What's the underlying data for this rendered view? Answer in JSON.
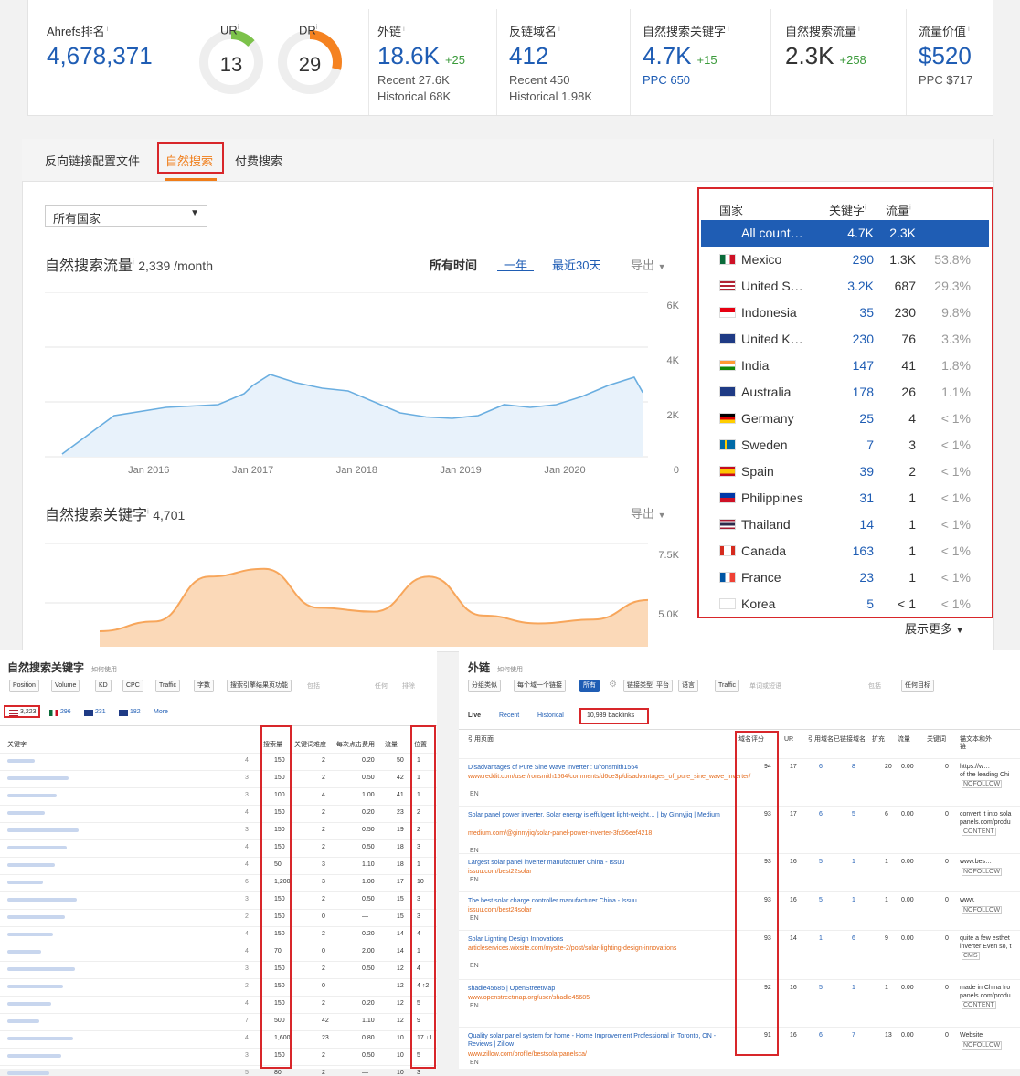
{
  "metrics": {
    "ahrefs_rank": {
      "label": "Ahrefs排名",
      "value": "4,678,371"
    },
    "ur": {
      "label": "UR",
      "value": "13",
      "score": 13,
      "color": "#7cc24a"
    },
    "dr": {
      "label": "DR",
      "value": "29",
      "score": 29,
      "color": "#f58220"
    },
    "backlinks": {
      "label": "外链",
      "value": "18.6K",
      "delta": "+25",
      "recent": "Recent 27.6K",
      "historical": "Historical 68K"
    },
    "ref_domains": {
      "label": "反链域名",
      "value": "412",
      "recent": "Recent 450",
      "historical": "Historical 1.98K"
    },
    "organic_keywords": {
      "label": "自然搜索关键字",
      "value": "4.7K",
      "delta": "+15",
      "ppc": "PPC 650"
    },
    "organic_traffic": {
      "label": "自然搜索流量",
      "value": "2.3K",
      "delta": "+258"
    },
    "traffic_value": {
      "label": "流量价值",
      "value": "$520",
      "ppc": "PPC $717"
    },
    "info_mark": "i"
  },
  "tabs": [
    "反向链接配置文件",
    "自然搜索",
    "付费搜索"
  ],
  "country_select": "所有国家",
  "traffic_section": {
    "title": "自然搜索流量",
    "value": "2,339 /month",
    "filters": {
      "all": "所有时间",
      "year": "一年",
      "days30": "最近30天",
      "export": "导出"
    },
    "y_ticks": [
      "6K",
      "4K",
      "2K",
      "0"
    ],
    "x_ticks": [
      "Jan 2016",
      "Jan 2017",
      "Jan 2018",
      "Jan 2019",
      "Jan 2020"
    ]
  },
  "keywords_section": {
    "title": "自然搜索关键字",
    "value": "4,701",
    "export": "导出",
    "y_ticks": [
      "7.5K",
      "5.0K"
    ]
  },
  "chart_data": [
    {
      "type": "line",
      "title": "自然搜索流量",
      "x": [
        "2015-03",
        "2015-09",
        "2016-03",
        "2016-09",
        "2016-12",
        "2017-01",
        "2017-03",
        "2017-06",
        "2017-09",
        "2017-12",
        "2018-03",
        "2018-06",
        "2018-09",
        "2018-12",
        "2019-03",
        "2019-06",
        "2019-09",
        "2019-12",
        "2020-03",
        "2020-06",
        "2020-09",
        "2020-10"
      ],
      "series": [
        {
          "values": [
            100,
            1500,
            1800,
            1900,
            2300,
            2600,
            3000,
            2700,
            2500,
            2400,
            2000,
            1600,
            1450,
            1400,
            1500,
            1900,
            1800,
            1900,
            2200,
            2600,
            2900,
            2339
          ]
        }
      ],
      "ylim": [
        0,
        6000
      ],
      "grid": true,
      "color": "#6aaee0"
    },
    {
      "type": "area",
      "title": "自然搜索关键字",
      "x": [
        "2015",
        "2016",
        "2016-06",
        "2017",
        "2017-06",
        "2018",
        "2018-06",
        "2019",
        "2019-06",
        "2020",
        "2020-06"
      ],
      "series": [
        {
          "values": [
            3000,
            3500,
            5800,
            6200,
            4200,
            4000,
            5800,
            3800,
            3400,
            3600,
            4600
          ]
        }
      ],
      "ylim": [
        0,
        7500
      ],
      "color": "#f7a65b"
    }
  ],
  "country_table": {
    "headers": [
      "国家",
      "关键字",
      "流量"
    ],
    "rows": [
      {
        "name": "All count…",
        "kw": "4.7K",
        "traffic": "2.3K",
        "pct": ""
      },
      {
        "name": "Mexico",
        "kw": "290",
        "traffic": "1.3K",
        "pct": "53.8%"
      },
      {
        "name": "United S…",
        "kw": "3.2K",
        "traffic": "687",
        "pct": "29.3%"
      },
      {
        "name": "Indonesia",
        "kw": "35",
        "traffic": "230",
        "pct": "9.8%"
      },
      {
        "name": "United K…",
        "kw": "230",
        "traffic": "76",
        "pct": "3.3%"
      },
      {
        "name": "India",
        "kw": "147",
        "traffic": "41",
        "pct": "1.8%"
      },
      {
        "name": "Australia",
        "kw": "178",
        "traffic": "26",
        "pct": "1.1%"
      },
      {
        "name": "Germany",
        "kw": "25",
        "traffic": "4",
        "pct": "< 1%"
      },
      {
        "name": "Sweden",
        "kw": "7",
        "traffic": "3",
        "pct": "< 1%"
      },
      {
        "name": "Spain",
        "kw": "39",
        "traffic": "2",
        "pct": "< 1%"
      },
      {
        "name": "Philippines",
        "kw": "31",
        "traffic": "1",
        "pct": "< 1%"
      },
      {
        "name": "Thailand",
        "kw": "14",
        "traffic": "1",
        "pct": "< 1%"
      },
      {
        "name": "Canada",
        "kw": "163",
        "traffic": "1",
        "pct": "< 1%"
      },
      {
        "name": "France",
        "kw": "23",
        "traffic": "1",
        "pct": "< 1%"
      },
      {
        "name": "Korea",
        "kw": "5",
        "traffic": "< 1",
        "pct": "< 1%"
      }
    ],
    "more": "展示更多"
  },
  "bottom_left": {
    "title": "自然搜索关键字",
    "howto": "如何使用",
    "filters": [
      "Position",
      "Volume",
      "KD",
      "CPC",
      "Traffic",
      "字数",
      "搜索引擎结果页功能",
      "包括",
      "任何",
      "排除"
    ],
    "countries": [
      {
        "n": "3,223"
      },
      {
        "n": "296"
      },
      {
        "n": "231"
      },
      {
        "n": "182"
      }
    ],
    "more": "More",
    "columns": [
      "关键字",
      "搜索量",
      "关键词难度",
      "每次点击费用",
      "流量",
      "位置"
    ],
    "rows": [
      [
        "4",
        "150",
        "2",
        "0.20",
        "50",
        "1"
      ],
      [
        "3",
        "150",
        "2",
        "0.50",
        "42",
        "1"
      ],
      [
        "3",
        "100",
        "4",
        "1.00",
        "41",
        "1"
      ],
      [
        "4",
        "150",
        "2",
        "0.20",
        "23",
        "2"
      ],
      [
        "3",
        "150",
        "2",
        "0.50",
        "19",
        "2"
      ],
      [
        "4",
        "150",
        "2",
        "0.50",
        "18",
        "3"
      ],
      [
        "4",
        "50",
        "3",
        "1.10",
        "18",
        "1"
      ],
      [
        "6",
        "1,200",
        "3",
        "1.00",
        "17",
        "10"
      ],
      [
        "3",
        "150",
        "2",
        "0.50",
        "15",
        "3"
      ],
      [
        "2",
        "150",
        "0",
        "—",
        "15",
        "3"
      ],
      [
        "4",
        "150",
        "2",
        "0.20",
        "14",
        "4"
      ],
      [
        "4",
        "70",
        "0",
        "2.00",
        "14",
        "1"
      ],
      [
        "3",
        "150",
        "2",
        "0.50",
        "12",
        "4"
      ],
      [
        "2",
        "150",
        "0",
        "—",
        "12",
        "4 ↑2"
      ],
      [
        "4",
        "150",
        "2",
        "0.20",
        "12",
        "5"
      ],
      [
        "7",
        "500",
        "42",
        "1.10",
        "12",
        "9"
      ],
      [
        "4",
        "1,600",
        "23",
        "0.80",
        "10",
        "17 ↓1"
      ],
      [
        "3",
        "150",
        "2",
        "0.50",
        "10",
        "5"
      ],
      [
        "5",
        "80",
        "2",
        "—",
        "10",
        "3"
      ]
    ]
  },
  "bottom_right": {
    "title": "外链",
    "howto": "如何使用",
    "filters": [
      "分组类似",
      "每个域一个链接",
      "所有",
      "链接类型",
      "平台",
      "语言",
      "Traffic",
      "单词或短语",
      "包括",
      "任何目标"
    ],
    "subtabs": [
      "Live",
      "Recent",
      "Historical"
    ],
    "count": "10,939 backlinks",
    "columns": [
      "引用页面",
      "域名评分",
      "UR",
      "引用域名",
      "已链接域名",
      "扩充",
      "流量",
      "关键词",
      "锚文本和外链"
    ],
    "rows": [
      {
        "title": "Disadvantages of Pure Sine Wave Inverter : u/ronsmith1564",
        "url": "www.reddit.com/user/ronsmith1564/comments/d6ce3p/disadvantages_of_pure_sine_wave_inverter/",
        "dr": "94",
        "ur": "17",
        "rd": "6",
        "ld": "8",
        "ext": "20",
        "tr": "0.00",
        "kw": "0",
        "anchor": "https://w…",
        "anchor2": "of the leading Chi",
        "tag": "NOFOLLOW"
      },
      {
        "title": "Solar panel power inverter. Solar energy is effulgent light-weight… | by Ginnyjiq | Medium",
        "url": "medium.com/@ginnyjiq/solar-panel-power-inverter-3fc66eef4218",
        "dr": "93",
        "ur": "17",
        "rd": "6",
        "ld": "5",
        "ext": "6",
        "tr": "0.00",
        "kw": "0",
        "anchor": "convert it into sola",
        "anchor2": "panels.com/produ",
        "tag": "CONTENT"
      },
      {
        "title": "Largest solar panel inverter manufacturer China - Issuu",
        "url": "issuu.com/best22solar",
        "dr": "93",
        "ur": "16",
        "rd": "5",
        "ld": "1",
        "ext": "1",
        "tr": "0.00",
        "kw": "0",
        "anchor": "www.bes…",
        "anchor2": "",
        "tag": "NOFOLLOW"
      },
      {
        "title": "The best solar charge controller manufacturer China - Issuu",
        "url": "issuu.com/best24solar",
        "dr": "93",
        "ur": "16",
        "rd": "5",
        "ld": "1",
        "ext": "1",
        "tr": "0.00",
        "kw": "0",
        "anchor": "www.",
        "anchor2": "",
        "tag": "NOFOLLOW"
      },
      {
        "title": "Solar Lighting Design Innovations",
        "url": "articleservices.wixsite.com/mysite-2/post/solar-lighting-design-innovations",
        "dr": "93",
        "ur": "14",
        "rd": "1",
        "ld": "6",
        "ext": "9",
        "tr": "0.00",
        "kw": "0",
        "anchor": "quite a few esthet",
        "anchor2": "inverter Even so, t",
        "tag": "CMS"
      },
      {
        "title": "shadle45685 | OpenStreetMap",
        "url": "www.openstreetmap.org/user/shadle45685",
        "dr": "92",
        "ur": "16",
        "rd": "5",
        "ld": "1",
        "ext": "1",
        "tr": "0.00",
        "kw": "0",
        "anchor": "made in China fro",
        "anchor2": "panels.com/produ",
        "tag": "CONTENT"
      },
      {
        "title": "Quality solar panel system for home - Home Improvement Professional in Toronto, ON - Reviews | Zillow",
        "url": "www.zillow.com/profile/bestsolarpanelsca/",
        "dr": "91",
        "ur": "16",
        "rd": "6",
        "ld": "7",
        "ext": "13",
        "tr": "0.00",
        "kw": "0",
        "anchor": "Website",
        "anchor2": "",
        "tag": "NOFOLLOW"
      }
    ],
    "lang": "EN"
  }
}
